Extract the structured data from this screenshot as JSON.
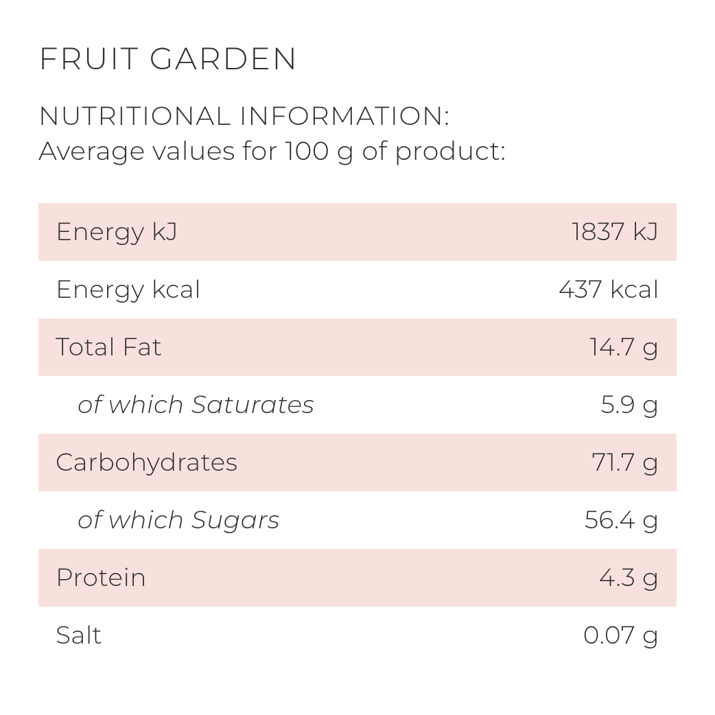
{
  "title": "FRUIT GARDEN",
  "header": {
    "line1": "NUTRITIONAL INFORMATION:",
    "line2": "Average values for 100 g of product:"
  },
  "colors": {
    "stripe_bg": "#f8e1dd",
    "plain_bg": "#ffffff",
    "text": "#303030",
    "page_bg": "#ffffff"
  },
  "typography": {
    "title_fontsize": 45,
    "header_fontsize": 38,
    "row_fontsize": 36,
    "font_weight": 300
  },
  "table": {
    "type": "table",
    "rows": [
      {
        "label": "Energy kJ",
        "value": "1837 kJ",
        "striped": true,
        "indent": false
      },
      {
        "label": "Energy kcal",
        "value": "437 kcal",
        "striped": false,
        "indent": false
      },
      {
        "label": "Total Fat",
        "value": "14.7 g",
        "striped": true,
        "indent": false
      },
      {
        "label": "of which Saturates",
        "value": "5.9 g",
        "striped": false,
        "indent": true
      },
      {
        "label": "Carbohydrates",
        "value": "71.7 g",
        "striped": true,
        "indent": false
      },
      {
        "label": "of which Sugars",
        "value": "56.4 g",
        "striped": false,
        "indent": true
      },
      {
        "label": "Protein",
        "value": "4.3 g",
        "striped": true,
        "indent": false
      },
      {
        "label": "Salt",
        "value": "0.07 g",
        "striped": false,
        "indent": false
      }
    ]
  }
}
